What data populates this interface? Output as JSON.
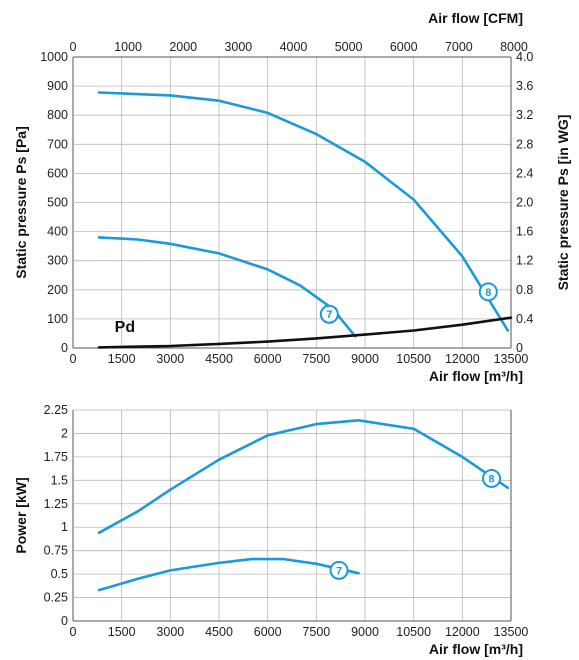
{
  "chart_data": [
    {
      "type": "line",
      "name": "pressure",
      "title": "",
      "xlabel": "Air flow [m³/h]",
      "xlabel_top": "Air flow [CFM]",
      "ylabel": "Static pressure Ps [Pa]",
      "ylabel_right": "Static pressure Ps [in WG]",
      "xlim": [
        0,
        13500
      ],
      "ylim": [
        0,
        1000
      ],
      "top_xlim": [
        0,
        8000
      ],
      "right_ylim": [
        0,
        4.0
      ],
      "x_ticks": [
        "0",
        "1500",
        "3000",
        "4500",
        "6000",
        "7500",
        "9000",
        "10500",
        "12000",
        "13500"
      ],
      "y_ticks": [
        "0",
        "100",
        "200",
        "300",
        "400",
        "500",
        "600",
        "700",
        "800",
        "900",
        "1000"
      ],
      "top_ticks": [
        "0",
        "1000",
        "2000",
        "3000",
        "4000",
        "5000",
        "6000",
        "7000",
        "8000"
      ],
      "right_ticks": [
        "0",
        "0.4",
        "0.8",
        "1.2",
        "1.6",
        "2.0",
        "2.4",
        "2.8",
        "3.2",
        "3.6",
        "4.0"
      ],
      "grid": true,
      "series": [
        {
          "name": "8",
          "color": "#1a9ad6",
          "x": [
            800,
            3000,
            4500,
            6000,
            7500,
            9000,
            10500,
            12000,
            13400
          ],
          "y": [
            878,
            868,
            850,
            808,
            735,
            640,
            510,
            315,
            60
          ]
        },
        {
          "name": "7",
          "color": "#1a9ad6",
          "x": [
            800,
            2000,
            3000,
            4500,
            6000,
            7000,
            8000,
            8700
          ],
          "y": [
            380,
            373,
            358,
            325,
            270,
            215,
            135,
            40
          ]
        },
        {
          "name": "Pd",
          "color": "#111111",
          "x": [
            800,
            3000,
            4500,
            6000,
            7500,
            9000,
            10500,
            12000,
            13500
          ],
          "y": [
            2,
            7,
            14,
            22,
            33,
            46,
            60,
            80,
            104
          ]
        }
      ],
      "markers": [
        {
          "label": "7",
          "x": 7900,
          "y": 116
        },
        {
          "label": "8",
          "x": 12800,
          "y": 193
        }
      ],
      "text_labels": [
        {
          "text": "Pd",
          "x": 1600,
          "y": 75
        }
      ]
    },
    {
      "type": "line",
      "name": "power",
      "title": "",
      "xlabel": "Air flow [m³/h]",
      "ylabel": "Power [kW]",
      "xlim": [
        0,
        13500
      ],
      "ylim": [
        0,
        2.25
      ],
      "x_ticks": [
        "0",
        "1500",
        "3000",
        "4500",
        "6000",
        "7500",
        "9000",
        "10500",
        "12000",
        "13500"
      ],
      "y_ticks": [
        "0",
        "0.25",
        "0.5",
        "0.75",
        "1",
        "1.25",
        "1.5",
        "1.75",
        "2",
        "2.25"
      ],
      "grid": true,
      "series": [
        {
          "name": "8",
          "color": "#1a9ad6",
          "x": [
            800,
            2000,
            3000,
            4500,
            6000,
            7500,
            8800,
            10500,
            12000,
            13400
          ],
          "y": [
            0.94,
            1.17,
            1.4,
            1.72,
            1.98,
            2.1,
            2.14,
            2.05,
            1.75,
            1.42
          ]
        },
        {
          "name": "7",
          "color": "#1a9ad6",
          "x": [
            800,
            2000,
            3000,
            4500,
            5500,
            6500,
            7500,
            8800
          ],
          "y": [
            0.33,
            0.45,
            0.54,
            0.62,
            0.66,
            0.66,
            0.61,
            0.51
          ]
        }
      ],
      "markers": [
        {
          "label": "7",
          "x": 8200,
          "y": 0.54
        },
        {
          "label": "8",
          "x": 12900,
          "y": 1.52
        }
      ]
    }
  ]
}
